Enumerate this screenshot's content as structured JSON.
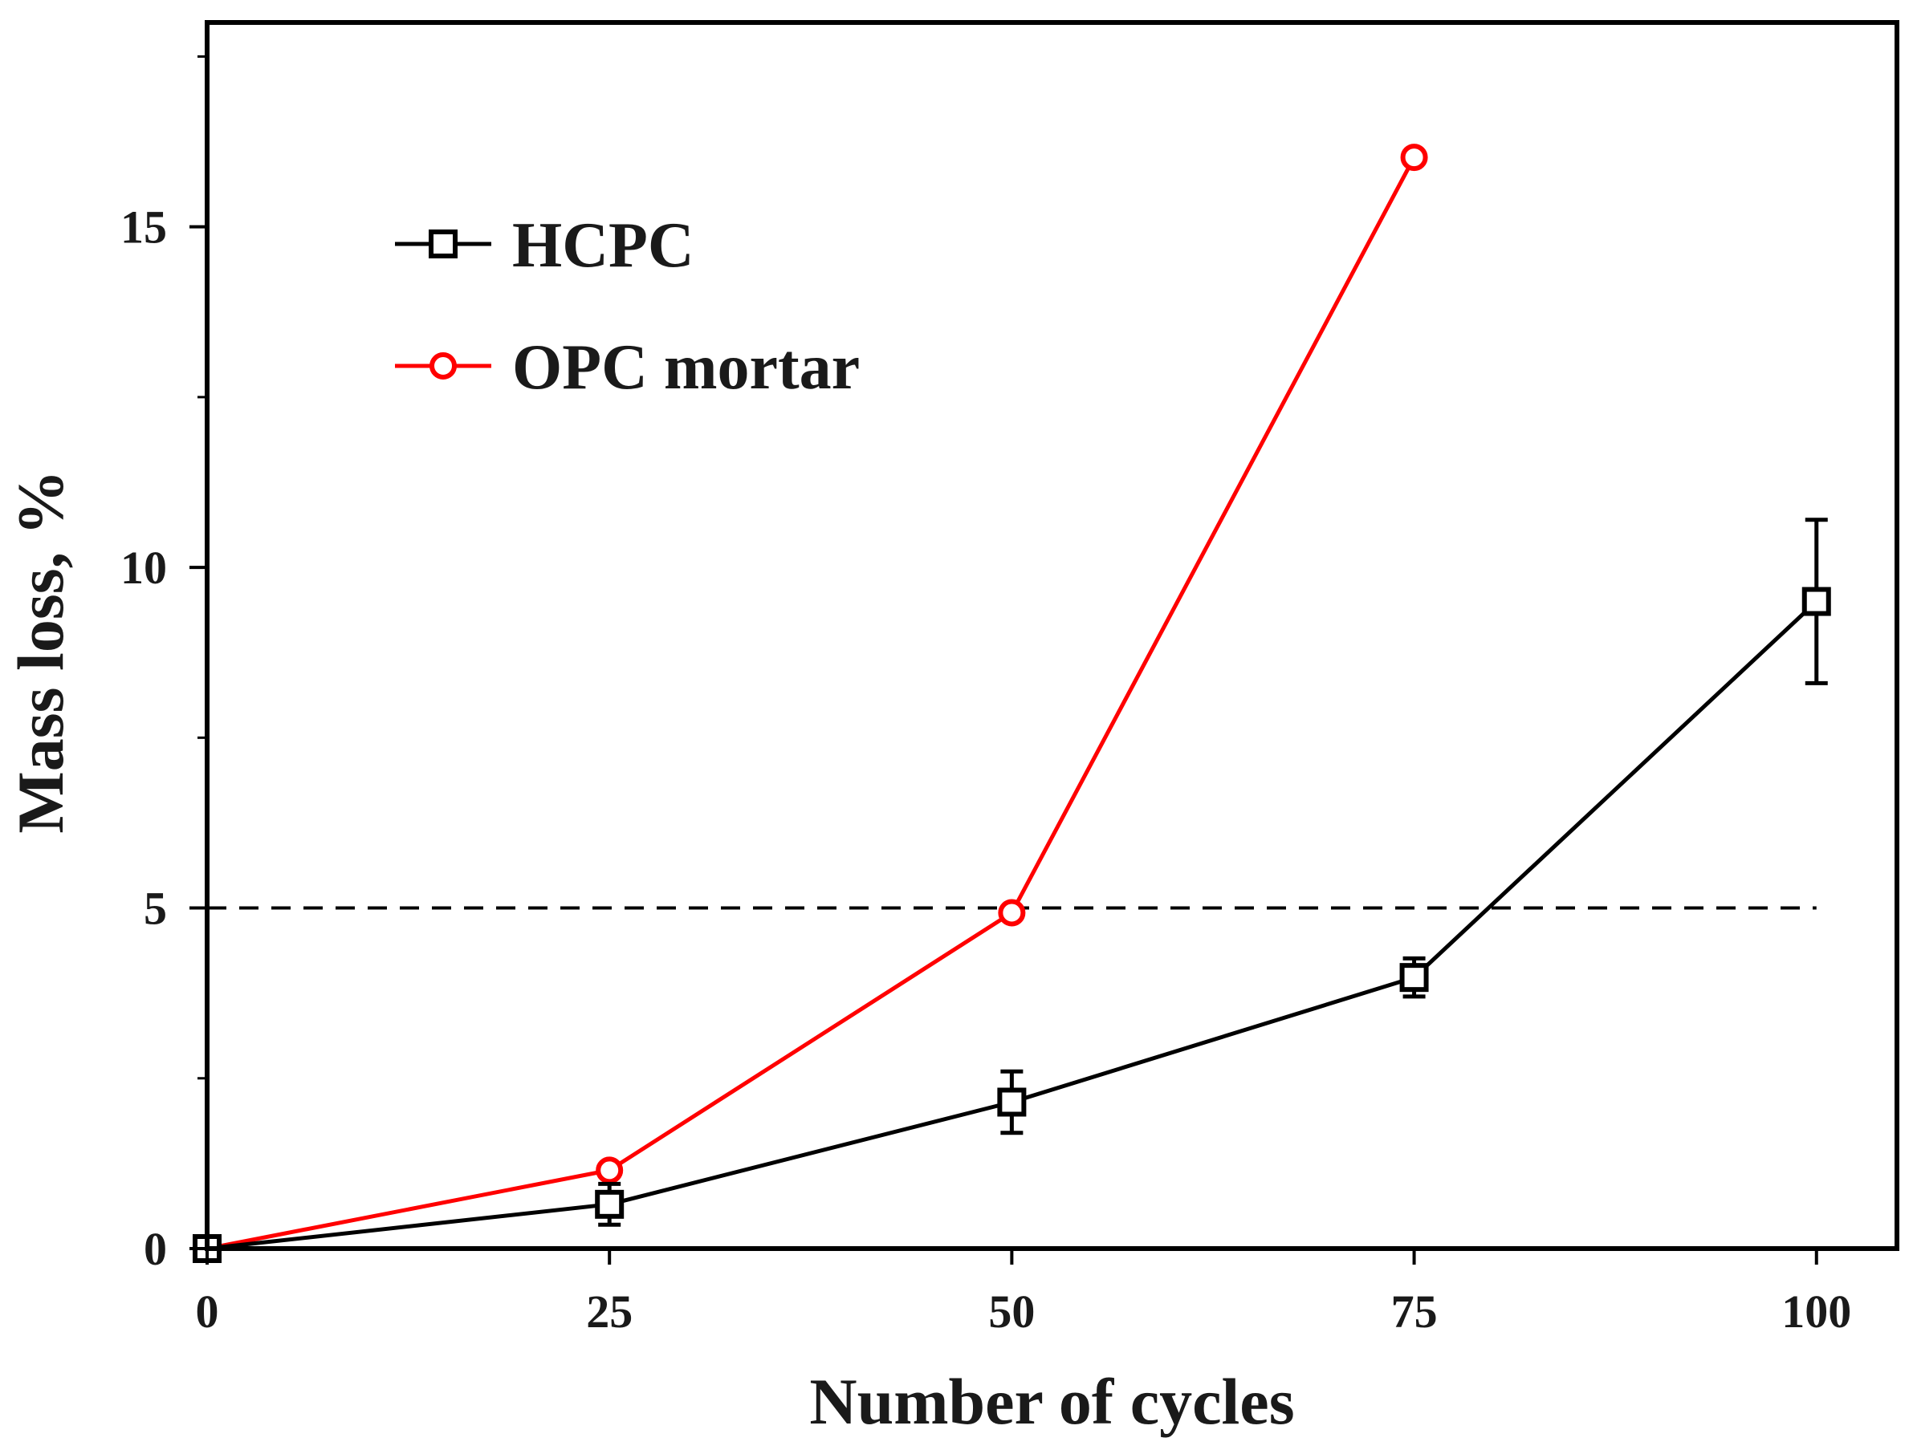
{
  "chart_data": {
    "type": "line",
    "title": "",
    "xlabel": "Number of cycles",
    "ylabel": "Mass loss, %",
    "xlim": [
      0,
      105
    ],
    "ylim": [
      0,
      18
    ],
    "x_ticks": [
      0,
      25,
      50,
      75,
      100
    ],
    "y_ticks": [
      0,
      5,
      10,
      15
    ],
    "grid": false,
    "legend_position": "top-left",
    "reference_line": {
      "y": 5,
      "style": "dashed",
      "color": "#000000"
    },
    "series": [
      {
        "name": "HCPC",
        "color": "#000000",
        "marker": "square",
        "x": [
          0,
          25,
          50,
          75,
          100
        ],
        "y": [
          0,
          0.65,
          2.15,
          3.98,
          9.5
        ],
        "error": [
          0,
          0.3,
          0.45,
          0.28,
          1.2
        ]
      },
      {
        "name": "OPC mortar",
        "color": "#ff0000",
        "marker": "circle",
        "x": [
          0,
          25,
          50,
          75
        ],
        "y": [
          0,
          1.15,
          4.93,
          16.02
        ]
      }
    ]
  }
}
